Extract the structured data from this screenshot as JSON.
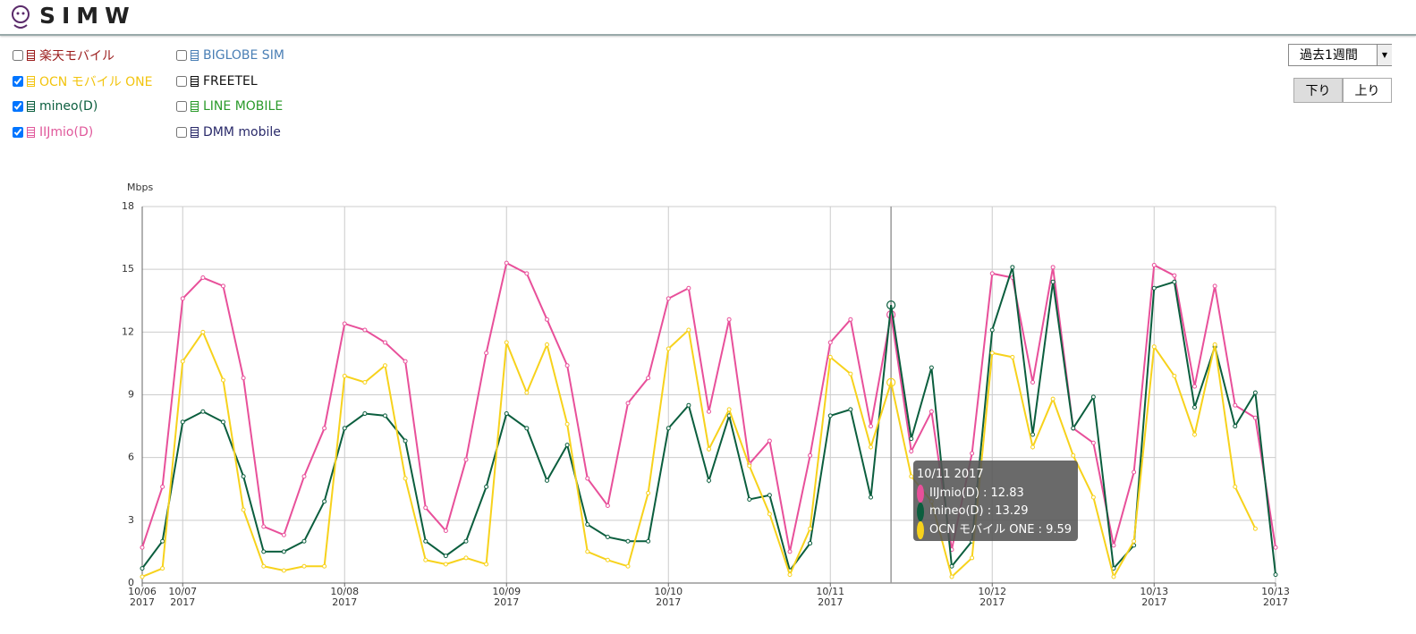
{
  "header": {
    "logo": "SIMW"
  },
  "filters": [
    {
      "name": "楽天モバイル",
      "color": "#9b1c1c",
      "checked": false
    },
    {
      "name": "OCN モバイル ONE",
      "color": "#f2c40f",
      "checked": true
    },
    {
      "name": "mineo(D)",
      "color": "#0b5e3e",
      "checked": true
    },
    {
      "name": "IIJmio(D)",
      "color": "#e0589b",
      "checked": true
    },
    {
      "name": "BIGLOBE SIM",
      "color": "#4a7fb5",
      "checked": false
    },
    {
      "name": "FREETEL",
      "color": "#111111",
      "checked": false
    },
    {
      "name": "LINE MOBILE",
      "color": "#2a9a2a",
      "checked": false
    },
    {
      "name": "DMM mobile",
      "color": "#2a2a6a",
      "checked": false
    }
  ],
  "period_select": "過去1週間",
  "direction_buttons": [
    {
      "label": "下り",
      "active": true
    },
    {
      "label": "上り",
      "active": false
    }
  ],
  "tooltip": {
    "title": "10/11 2017",
    "items": [
      {
        "text": "IIJmio(D) : 12.83"
      },
      {
        "text": "mineo(D) : 13.29"
      },
      {
        "text": "OCN モバイル ONE : 9.59"
      }
    ]
  },
  "chart_data": {
    "type": "line",
    "y_label": "Mbps",
    "categories": [
      "10/06\n2017",
      null,
      "10/07\n2017",
      null,
      null,
      null,
      null,
      null,
      null,
      null,
      "10/08\n2017",
      null,
      null,
      null,
      null,
      null,
      null,
      null,
      "10/09\n2017",
      null,
      null,
      null,
      null,
      null,
      null,
      null,
      "10/10\n2017",
      null,
      null,
      null,
      null,
      null,
      null,
      null,
      "10/11\n2017",
      null,
      null,
      null,
      null,
      null,
      null,
      null,
      "10/12\n2017",
      null,
      null,
      null,
      null,
      null,
      null,
      null,
      "10/13\n2017",
      null,
      null,
      null,
      null,
      null,
      "10/13\n2017"
    ],
    "series": [
      {
        "name": "IIJmio(D)",
        "color": "#e8509a",
        "values": [
          1.7,
          4.6,
          13.6,
          14.6,
          14.2,
          9.8,
          2.7,
          2.3,
          5.1,
          7.4,
          12.4,
          12.1,
          11.5,
          10.6,
          3.6,
          2.5,
          5.9,
          11.0,
          15.3,
          14.8,
          12.6,
          10.4,
          5.0,
          3.7,
          8.6,
          9.8,
          13.6,
          14.1,
          8.2,
          12.6,
          5.7,
          6.8,
          1.5,
          6.1,
          11.5,
          12.6,
          7.5,
          12.83,
          6.3,
          8.2,
          1.6,
          6.2,
          14.8,
          14.6,
          9.6,
          15.1,
          7.4,
          6.7,
          1.8,
          5.3,
          15.2,
          14.7,
          9.4,
          14.2,
          8.5,
          7.9,
          1.7
        ]
      },
      {
        "name": "mineo(D)",
        "color": "#0b5e3e",
        "values": [
          0.7,
          2.0,
          7.7,
          8.2,
          7.7,
          5.1,
          1.5,
          1.5,
          2.0,
          3.9,
          7.4,
          8.1,
          8.0,
          6.8,
          2.0,
          1.3,
          2.0,
          4.6,
          8.1,
          7.4,
          4.9,
          6.6,
          2.8,
          2.2,
          2.0,
          2.0,
          7.4,
          8.5,
          4.9,
          8.0,
          4.0,
          4.2,
          0.6,
          1.9,
          8.0,
          8.3,
          4.1,
          13.29,
          6.9,
          10.3,
          0.8,
          2.0,
          12.1,
          15.1,
          7.1,
          14.4,
          7.4,
          8.9,
          0.7,
          1.8,
          14.1,
          14.4,
          8.4,
          11.3,
          7.5,
          9.1,
          0.4
        ]
      },
      {
        "name": "OCN モバイル ONE",
        "color": "#f7d21c",
        "values": [
          0.3,
          0.7,
          10.6,
          12.0,
          9.7,
          3.5,
          0.8,
          0.6,
          0.8,
          0.8,
          9.9,
          9.6,
          10.4,
          5.0,
          1.1,
          0.9,
          1.2,
          0.9,
          11.5,
          9.1,
          11.4,
          7.6,
          1.5,
          1.1,
          0.8,
          4.3,
          11.2,
          12.1,
          6.4,
          8.3,
          5.6,
          3.3,
          0.4,
          2.6,
          10.8,
          10.0,
          6.5,
          9.59,
          5.1,
          3.9,
          0.3,
          1.2,
          11.0,
          10.8,
          6.5,
          8.8,
          6.1,
          4.1,
          0.3,
          2.0,
          11.3,
          9.9,
          7.1,
          11.4,
          4.6,
          2.6,
          null
        ]
      }
    ],
    "ylim": [
      0,
      18
    ],
    "yticks": [
      0,
      3,
      6,
      9,
      12,
      15,
      18
    ],
    "grid": true
  }
}
